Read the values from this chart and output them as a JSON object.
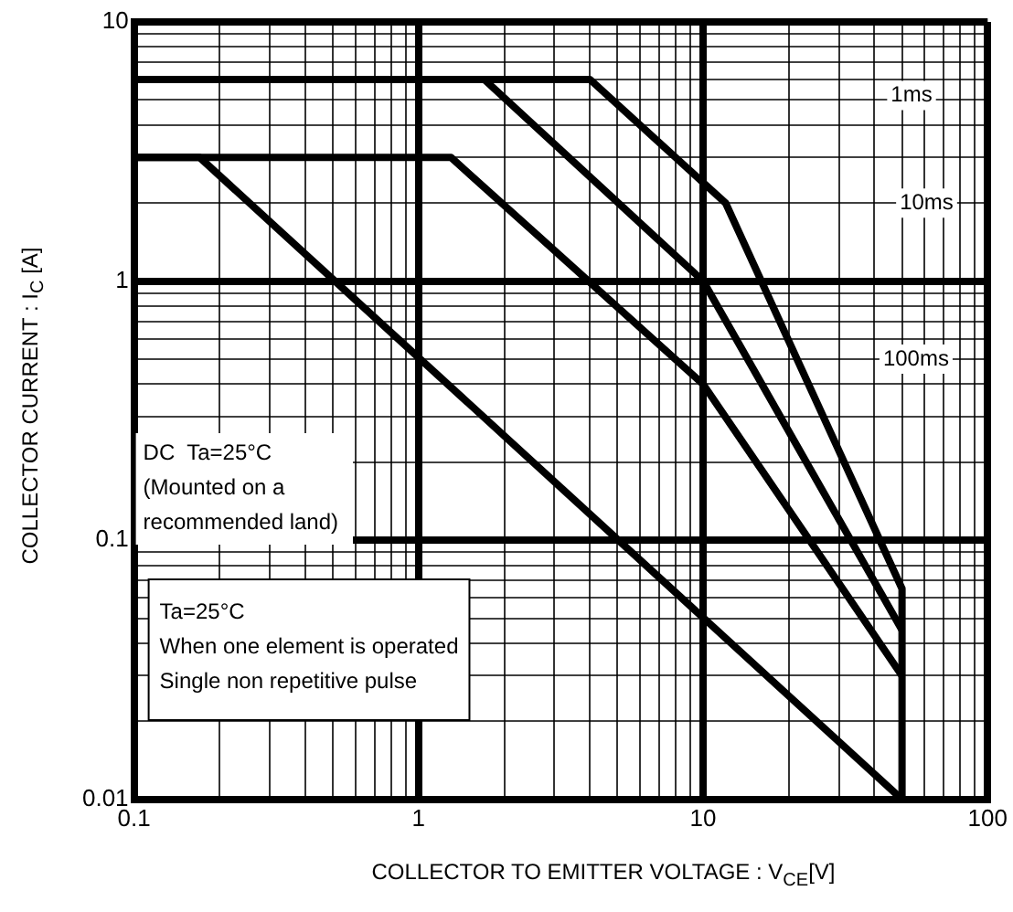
{
  "chart_data": {
    "type": "line",
    "xlabel": "COLLECTOR TO EMITTER VOLTAGE : V$_{CE}$[V]",
    "ylabel": "COLLECTOR CURRENT : I$_{C}$ [A]",
    "log": "xy",
    "xlim": [
      0.1,
      100
    ],
    "ylim": [
      0.01,
      10
    ],
    "xticks": [
      0.1,
      {
        "value": 0.2,
        "label": null
      },
      {
        "value": 0.3,
        "label": null
      },
      {
        "value": 0.4,
        "label": null
      },
      {
        "value": 0.5,
        "label": null
      },
      {
        "value": 0.6,
        "label": null
      },
      {
        "value": 0.7,
        "label": null
      },
      {
        "value": 0.8,
        "label": null
      },
      {
        "value": 0.9,
        "label": null
      },
      1,
      {
        "value": 2,
        "label": null
      },
      {
        "value": 3,
        "label": null
      },
      {
        "value": 4,
        "label": null
      },
      {
        "value": 5,
        "label": null
      },
      {
        "value": 6,
        "label": null
      },
      {
        "value": 7,
        "label": null
      },
      {
        "value": 8,
        "label": null
      },
      {
        "value": 9,
        "label": null
      },
      10,
      {
        "value": 20,
        "label": null
      },
      {
        "value": 30,
        "label": null
      },
      {
        "value": 40,
        "label": null
      },
      {
        "value": 50,
        "label": null
      },
      {
        "value": 60,
        "label": null
      },
      {
        "value": 70,
        "label": null
      },
      {
        "value": 80,
        "label": null
      },
      {
        "value": 90,
        "label": null
      },
      100
    ],
    "yticks": [
      0.01,
      {
        "value": 0.02,
        "label": null
      },
      {
        "value": 0.03,
        "label": null
      },
      {
        "value": 0.04,
        "label": null
      },
      {
        "value": 0.05,
        "label": null
      },
      {
        "value": 0.06,
        "label": null
      },
      {
        "value": 0.07,
        "label": null
      },
      {
        "value": 0.08,
        "label": null
      },
      {
        "value": 0.09,
        "label": null
      },
      0.1,
      {
        "value": 0.2,
        "label": null
      },
      {
        "value": 0.3,
        "label": null
      },
      {
        "value": 0.4,
        "label": null
      },
      {
        "value": 0.5,
        "label": null
      },
      {
        "value": 0.6,
        "label": null
      },
      {
        "value": 0.7,
        "label": null
      },
      {
        "value": 0.8,
        "label": null
      },
      {
        "value": 0.9,
        "label": null
      },
      1,
      {
        "value": 2,
        "label": null
      },
      {
        "value": 3,
        "label": null
      },
      {
        "value": 4,
        "label": null
      },
      {
        "value": 5,
        "label": null
      },
      {
        "value": 6,
        "label": null
      },
      {
        "value": 7,
        "label": null
      },
      {
        "value": 8,
        "label": null
      },
      {
        "value": 9,
        "label": null
      },
      10
    ],
    "grid": true,
    "legend": false,
    "marker": "none",
    "line_style": "solid",
    "series": [
      {
        "color": "#000000",
        "x": [
          0.1,
          4,
          12,
          50,
          50
        ],
        "values": [
          6,
          6,
          2,
          0.065,
          0.01
        ]
      },
      {
        "color": "#000000",
        "x": [
          0.1,
          1.7,
          10,
          50
        ],
        "values": [
          6,
          6,
          1,
          0.045
        ]
      },
      {
        "color": "#000000",
        "x": [
          0.1,
          1.3,
          10,
          50
        ],
        "values": [
          3,
          3,
          0.4,
          0.03
        ]
      },
      {
        "color": "#000000",
        "x": [
          0.1,
          0.17,
          50
        ],
        "values": [
          3,
          3,
          0.01
        ]
      }
    ],
    "annotations": [
      {
        "text": "1ms",
        "x": 54,
        "y": 5.2
      },
      {
        "text": "10ms",
        "x": 61,
        "y": 2
      },
      {
        "text": "100ms",
        "x": 56,
        "y": 0.5
      },
      "DC  Ta=25°C\n(Mounted on a\nrecommended land)",
      "Ta=25°C\nWhen one element is operated\nSingle non repetitive pulse"
    ]
  }
}
